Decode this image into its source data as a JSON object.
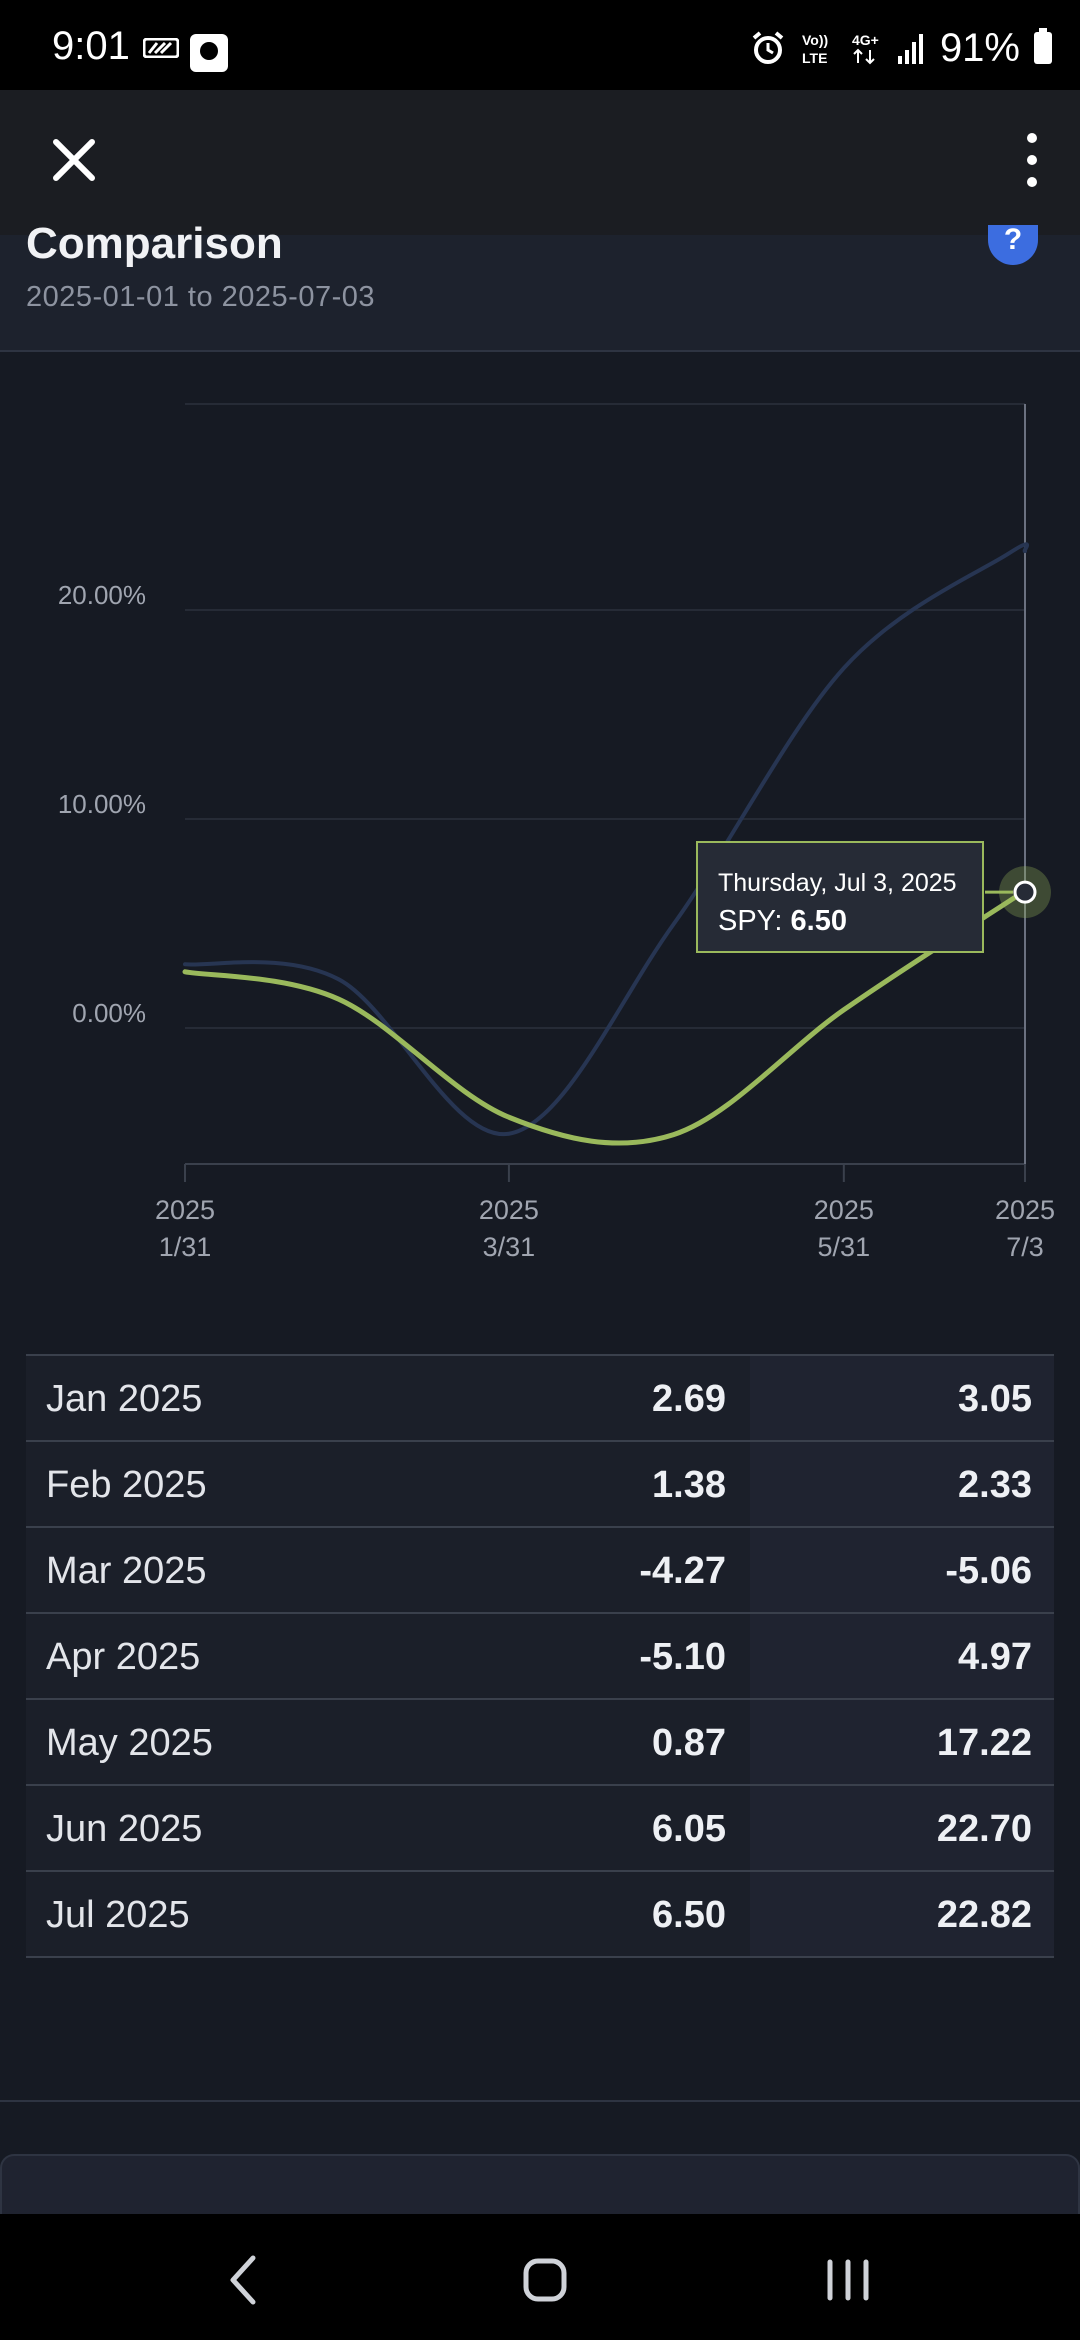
{
  "status_bar": {
    "time": "9:01",
    "battery": "91%",
    "icons": [
      "cast-icon",
      "notification-icon",
      "alarm-icon",
      "volte-icon",
      "4g-icon",
      "signal-icon",
      "battery-icon"
    ]
  },
  "app_bar": {
    "close_icon": "close-icon",
    "more_icon": "more-vert-icon"
  },
  "header": {
    "title": "Comparison",
    "date_range": "2025-01-01 to 2025-07-03",
    "help_label": "?"
  },
  "chart_data": {
    "type": "line",
    "y_ticks": [
      "20.00%",
      "10.00%",
      "0.00%"
    ],
    "x_ticks": [
      {
        "line1": "2025",
        "line2": "1/31"
      },
      {
        "line1": "2025",
        "line2": "3/31"
      },
      {
        "line1": "2025",
        "line2": "5/31"
      },
      {
        "line1": "2025",
        "line2": "7/3"
      }
    ],
    "series": [
      {
        "name": "SPY",
        "color": "#9ab95c",
        "x": [
          "2025-01-31",
          "2025-02-28",
          "2025-03-31",
          "2025-04-30",
          "2025-05-31",
          "2025-06-30",
          "2025-07-03"
        ],
        "values": [
          2.69,
          1.38,
          -4.27,
          -5.1,
          0.87,
          6.05,
          6.5
        ]
      },
      {
        "color": "#273552",
        "x": [
          "2025-01-31",
          "2025-02-28",
          "2025-03-31",
          "2025-04-30",
          "2025-05-31",
          "2025-06-30",
          "2025-07-03"
        ],
        "values": [
          3.05,
          2.33,
          -5.06,
          4.97,
          17.22,
          22.7,
          22.82
        ]
      }
    ],
    "tooltip": {
      "date": "Thursday, Jul 3, 2025",
      "label": "SPY: ",
      "value": "6.50"
    }
  },
  "table": {
    "rows": [
      {
        "month": "Jan 2025",
        "a": "2.69",
        "b": "3.05"
      },
      {
        "month": "Feb 2025",
        "a": "1.38",
        "b": "2.33"
      },
      {
        "month": "Mar 2025",
        "a": "-4.27",
        "b": "-5.06"
      },
      {
        "month": "Apr 2025",
        "a": "-5.10",
        "b": "4.97"
      },
      {
        "month": "May 2025",
        "a": "0.87",
        "b": "17.22"
      },
      {
        "month": "Jun 2025",
        "a": "6.05",
        "b": "22.70"
      },
      {
        "month": "Jul 2025",
        "a": "6.50",
        "b": "22.82"
      }
    ]
  },
  "nav_bar": {
    "back_icon": "back-icon",
    "home_icon": "home-icon",
    "recents_icon": "recents-icon"
  }
}
